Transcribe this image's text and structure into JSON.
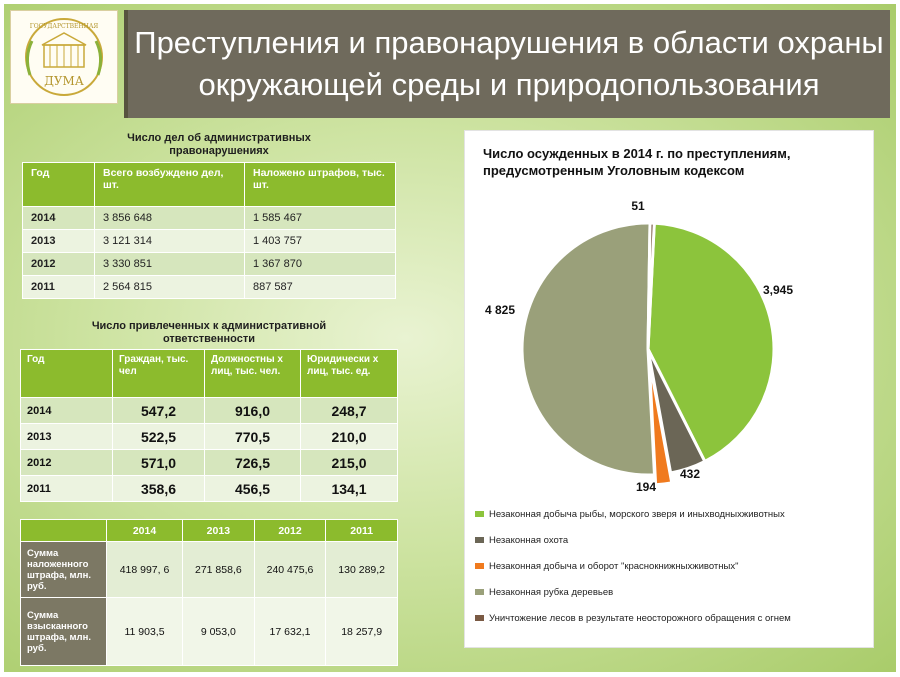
{
  "header": {
    "title_line1": "Преступления и правонарушения в области охраны",
    "title_line2": "окружающей среды и природопользования",
    "logo_text_top": "ГОСУДАРСТВЕННАЯ",
    "logo_text_bottom": "ДУМА"
  },
  "table1": {
    "caption": "Число дел об административных правонарушениях",
    "headers": [
      "Год",
      "Всего возбуждено дел, шт.",
      "Наложено штрафов, тыс. шт."
    ],
    "rows": [
      [
        "2014",
        "3 856 648",
        "1 585 467"
      ],
      [
        "2013",
        "3 121 314",
        "1 403 757"
      ],
      [
        "2012",
        "3 330 851",
        "1 367 870"
      ],
      [
        "2011",
        "2 564 815",
        "887 587"
      ]
    ]
  },
  "table2": {
    "caption": "Число привлеченных к административной ответственности",
    "headers": [
      "Год",
      "Граждан, тыс. чел",
      "Должностны х лиц, тыс. чел.",
      "Юридически х лиц, тыс. ед."
    ],
    "rows": [
      [
        "2014",
        "547,2",
        "916,0",
        "248,7"
      ],
      [
        "2013",
        "522,5",
        "770,5",
        "210,0"
      ],
      [
        "2012",
        "571,0",
        "726,5",
        "215,0"
      ],
      [
        "2011",
        "358,6",
        "456,5",
        "134,1"
      ]
    ]
  },
  "table3": {
    "headers": [
      "",
      "2014",
      "2013",
      "2012",
      "2011"
    ],
    "rows": [
      [
        "Сумма наложенного штрафа, млн. руб.",
        "418 997, 6",
        "271 858,6",
        "240 475,6",
        "130 289,2"
      ],
      [
        "Сумма взысканного штрафа, млн. руб.",
        "11 903,5",
        "9 053,0",
        "17 632,1",
        "18 257,9"
      ]
    ]
  },
  "chart_data": {
    "type": "pie",
    "title": "Число осужденных в 2014 г. по преступлениям, предусмотренным Уголовным кодексом",
    "labels": [
      "Незаконная добыча рыбы, морского зверя и иных водных животных",
      "Незаконная охота",
      "Незаконная добыча и оборот \"краснокнижных животных\"",
      "Незаконная рубка деревьев",
      "Уничтожение лесов в результате неосторожного обращения с огнем"
    ],
    "legend_labels": [
      "Незаконная добыча рыбы, морского зверя и иныхводныхживотных",
      "Незаконная охота",
      "Незаконная добыча и оборот \"краснокнижныхживотных\"",
      "Незаконная рубка деревьев",
      "Уничтожение лесов в результате неосторожного обращения с огнем"
    ],
    "values": [
      3945,
      432,
      194,
      4825,
      51
    ],
    "data_labels": [
      "3,945",
      "432",
      "194",
      "4 825",
      "51"
    ],
    "colors": [
      "#8cc43c",
      "#6b6656",
      "#f07a1e",
      "#9aa07a",
      "#7a5a44"
    ],
    "exploded": [
      false,
      false,
      true,
      false,
      false
    ],
    "legend_position": "bottom"
  }
}
